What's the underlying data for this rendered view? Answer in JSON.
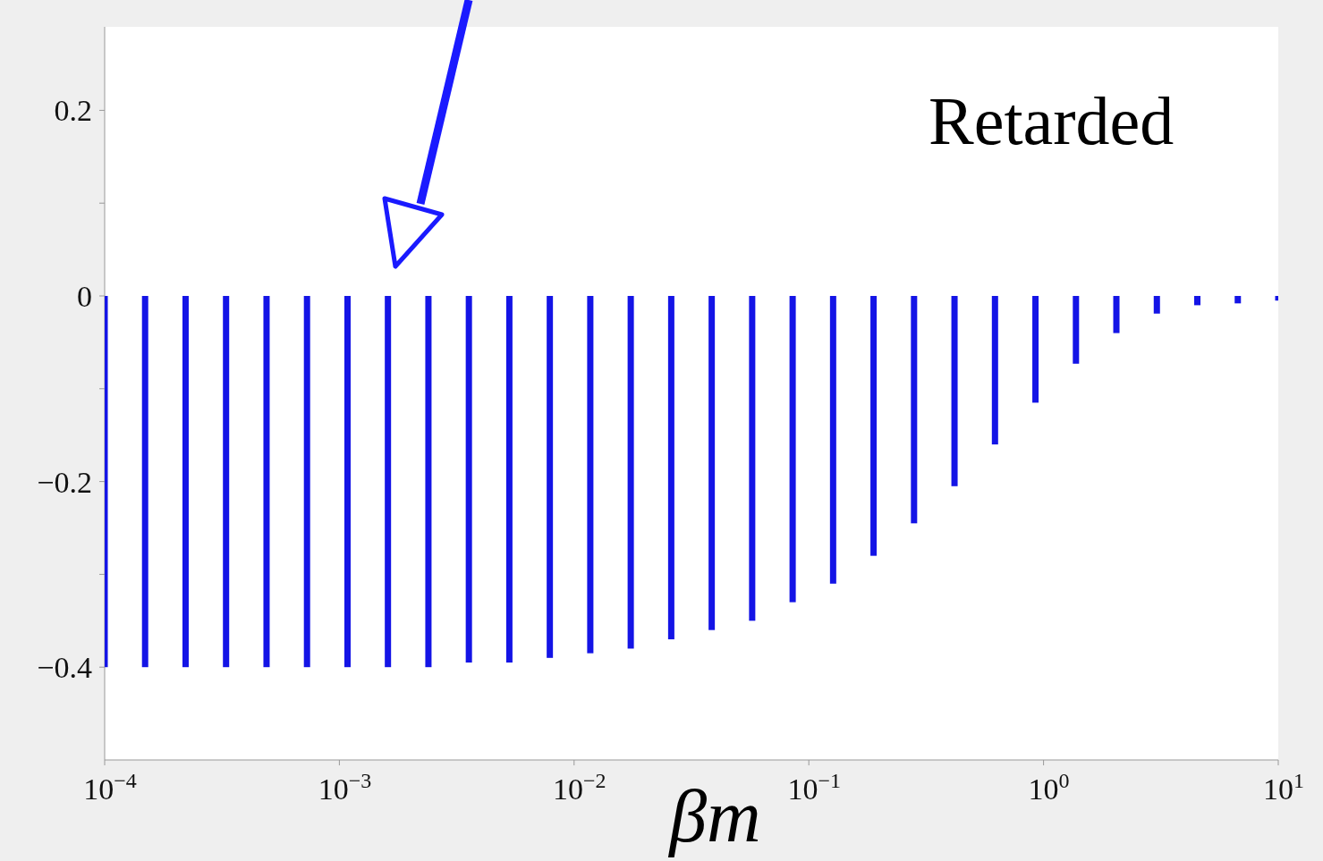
{
  "chart_data": {
    "type": "bar",
    "xlabel": "βm",
    "annotations": [
      "Retarded"
    ],
    "log": "x",
    "color": "#1414e6",
    "x": [
      0.0001,
      0.0001487,
      0.0002212,
      0.000329,
      0.0004894,
      0.0007279,
      0.001083,
      0.00161,
      0.002395,
      0.003562,
      0.005298,
      0.00788,
      0.01172,
      0.01743,
      0.02593,
      0.03857,
      0.05736,
      0.08532,
      0.1269,
      0.1887,
      0.2807,
      0.4175,
      0.621,
      0.9237,
      1.374,
      2.043,
      3.039,
      4.52,
      6.723,
      10
    ],
    "values": [
      -0.4,
      -0.4,
      -0.4,
      -0.4,
      -0.4,
      -0.4,
      -0.4,
      -0.4,
      -0.4,
      -0.395,
      -0.395,
      -0.39,
      -0.385,
      -0.38,
      -0.37,
      -0.36,
      -0.35,
      -0.33,
      -0.31,
      -0.28,
      -0.245,
      -0.205,
      -0.16,
      -0.115,
      -0.073,
      -0.04,
      -0.019,
      -0.01,
      -0.008,
      -0.005
    ],
    "xlim": [
      0.0001,
      10
    ],
    "xticks": [
      {
        "value": 0.0001,
        "label": "10$^{−4}$"
      },
      {
        "value": 0.001,
        "label": "10$^{−3}$"
      },
      {
        "value": 0.01,
        "label": "10$^{−2}$"
      },
      {
        "value": 0.1,
        "label": "10$^{−1}$"
      },
      {
        "value": 1,
        "label": "10$^{0}$"
      },
      {
        "value": 10,
        "label": "10$^{1}$"
      }
    ],
    "ylim": [
      -0.5,
      0.29
    ],
    "yticks": [
      {
        "value": -0.4,
        "label": "−0.4"
      },
      {
        "value": -0.3,
        "label": null
      },
      {
        "value": -0.2,
        "label": "−0.2"
      },
      {
        "value": -0.1,
        "label": null
      },
      0,
      {
        "value": 0.1,
        "label": null
      },
      0.2
    ]
  }
}
